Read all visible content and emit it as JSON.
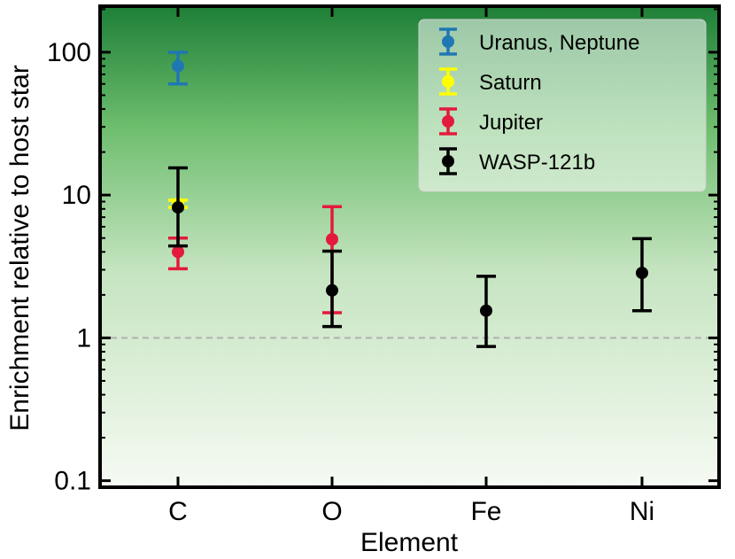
{
  "chart_data": {
    "type": "scatter",
    "title": "",
    "xlabel": "Element",
    "ylabel": "Enrichment relative to host star",
    "y_scale": "log",
    "ylim": [
      0.09,
      210
    ],
    "categories": [
      "C",
      "O",
      "Fe",
      "Ni"
    ],
    "y_ticks": [
      {
        "value": 0.1,
        "label": "0.1"
      },
      {
        "value": 1,
        "label": "1"
      },
      {
        "value": 10,
        "label": "10"
      },
      {
        "value": 100,
        "label": "100"
      }
    ],
    "reference_line": {
      "value": 1,
      "style": "dashed",
      "color": "#b0b0b0"
    },
    "background": {
      "type": "vertical-gradient",
      "top_color": "#1e7f37",
      "bottom_color": "#f6faf3"
    },
    "legend_position": "top-right",
    "series": [
      {
        "name": "Uranus, Neptune",
        "color": "#1f77b4",
        "points": [
          {
            "category": "C",
            "y": 80,
            "y_low": 60,
            "y_high": 100
          }
        ]
      },
      {
        "name": "Saturn",
        "color": "#ffff00",
        "points": [
          {
            "category": "C",
            "y": 8.7,
            "y_low": 8.2,
            "y_high": 9.2
          }
        ]
      },
      {
        "name": "Jupiter",
        "color": "#e31a3c",
        "points": [
          {
            "category": "C",
            "y": 4.0,
            "y_low": 3.05,
            "y_high": 5.0
          },
          {
            "category": "O",
            "y": 4.9,
            "y_low": 1.5,
            "y_high": 8.3
          }
        ]
      },
      {
        "name": "WASP-121b",
        "color": "#000000",
        "points": [
          {
            "category": "C",
            "y": 8.2,
            "y_low": 4.4,
            "y_high": 15.5
          },
          {
            "category": "O",
            "y": 2.15,
            "y_low": 1.2,
            "y_high": 4.05
          },
          {
            "category": "Fe",
            "y": 1.55,
            "y_low": 0.87,
            "y_high": 2.7
          },
          {
            "category": "Ni",
            "y": 2.85,
            "y_low": 1.55,
            "y_high": 4.95
          }
        ]
      }
    ]
  }
}
